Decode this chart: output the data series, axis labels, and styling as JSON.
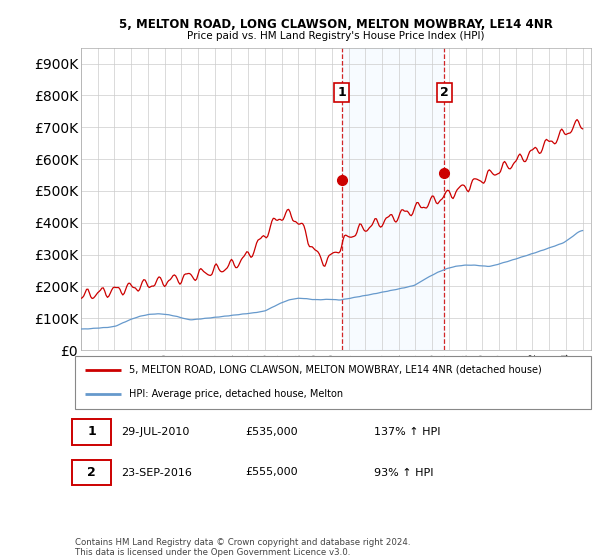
{
  "title1": "5, MELTON ROAD, LONG CLAWSON, MELTON MOWBRAY, LE14 4NR",
  "title2": "Price paid vs. HM Land Registry's House Price Index (HPI)",
  "legend_label1": "5, MELTON ROAD, LONG CLAWSON, MELTON MOWBRAY, LE14 4NR (detached house)",
  "legend_label2": "HPI: Average price, detached house, Melton",
  "sale1_date": "29-JUL-2010",
  "sale1_price": "£535,000",
  "sale1_hpi": "137% ↑ HPI",
  "sale2_date": "23-SEP-2016",
  "sale2_price": "£555,000",
  "sale2_hpi": "93% ↑ HPI",
  "footer": "Contains HM Land Registry data © Crown copyright and database right 2024.\nThis data is licensed under the Open Government Licence v3.0.",
  "line1_color": "#cc0000",
  "line2_color": "#6699cc",
  "sale1_x": 2010.58,
  "sale1_y": 535000,
  "sale2_x": 2016.73,
  "sale2_y": 555000,
  "vline1_x": 2010.58,
  "vline2_x": 2016.73,
  "ylim": [
    0,
    950000
  ],
  "xlim_start": 1995.0,
  "xlim_end": 2025.5,
  "background_color": "#ffffff",
  "grid_color": "#cccccc",
  "shade_color": "#ddeeff"
}
